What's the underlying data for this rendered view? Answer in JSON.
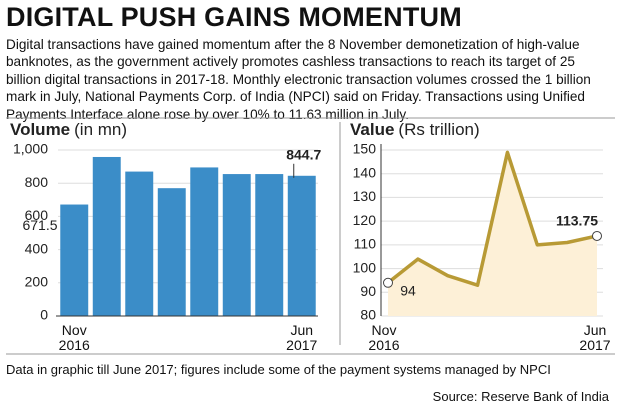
{
  "title": "DIGITAL PUSH GAINS MOMENTUM",
  "body": "Digital transactions have gained momentum after the 8 November demonetization of high-value banknotes, as the government actively promotes cashless transactions to reach its target of 25 billion digital transactions in 2017-18. Monthly electronic transaction volumes crossed the 1 billion mark in July, National Payments Corp. of India (NPCI) said on Friday. Transactions using Unified Payments Interface alone rose by over 10% to 11.63 million in July.",
  "chart_data": [
    {
      "type": "bar",
      "title": "Volume",
      "subtitle": "(in mn)",
      "categories": [
        "Nov 2016",
        null,
        null,
        null,
        null,
        null,
        null,
        "Jun 2017"
      ],
      "values": [
        671.5,
        958,
        870,
        770,
        895,
        855,
        855,
        844.7
      ],
      "color": "#3b8dc8",
      "ylim": [
        0,
        1000
      ],
      "yticks": [
        0,
        200,
        400,
        600,
        800,
        {
          "value": 1000,
          "label": "1,000"
        }
      ],
      "grid": true
    },
    {
      "type": "area",
      "title": "Value",
      "subtitle": "(Rs trillion)",
      "categories": [
        "Nov 2016",
        null,
        null,
        null,
        null,
        null,
        null,
        "Jun 2017"
      ],
      "values": [
        94,
        104,
        97,
        93,
        149,
        110,
        111,
        113.75
      ],
      "color": "#b89a35",
      "fill": "#fdf0d7",
      "ylim": [
        80,
        150
      ],
      "yticks": [
        80,
        90,
        100,
        110,
        120,
        130,
        140,
        150
      ],
      "grid": true
    }
  ],
  "footnote": "Data in graphic till June 2017; figures include some of the payment systems managed by NPCI",
  "source": "Source: Reserve Bank of India"
}
